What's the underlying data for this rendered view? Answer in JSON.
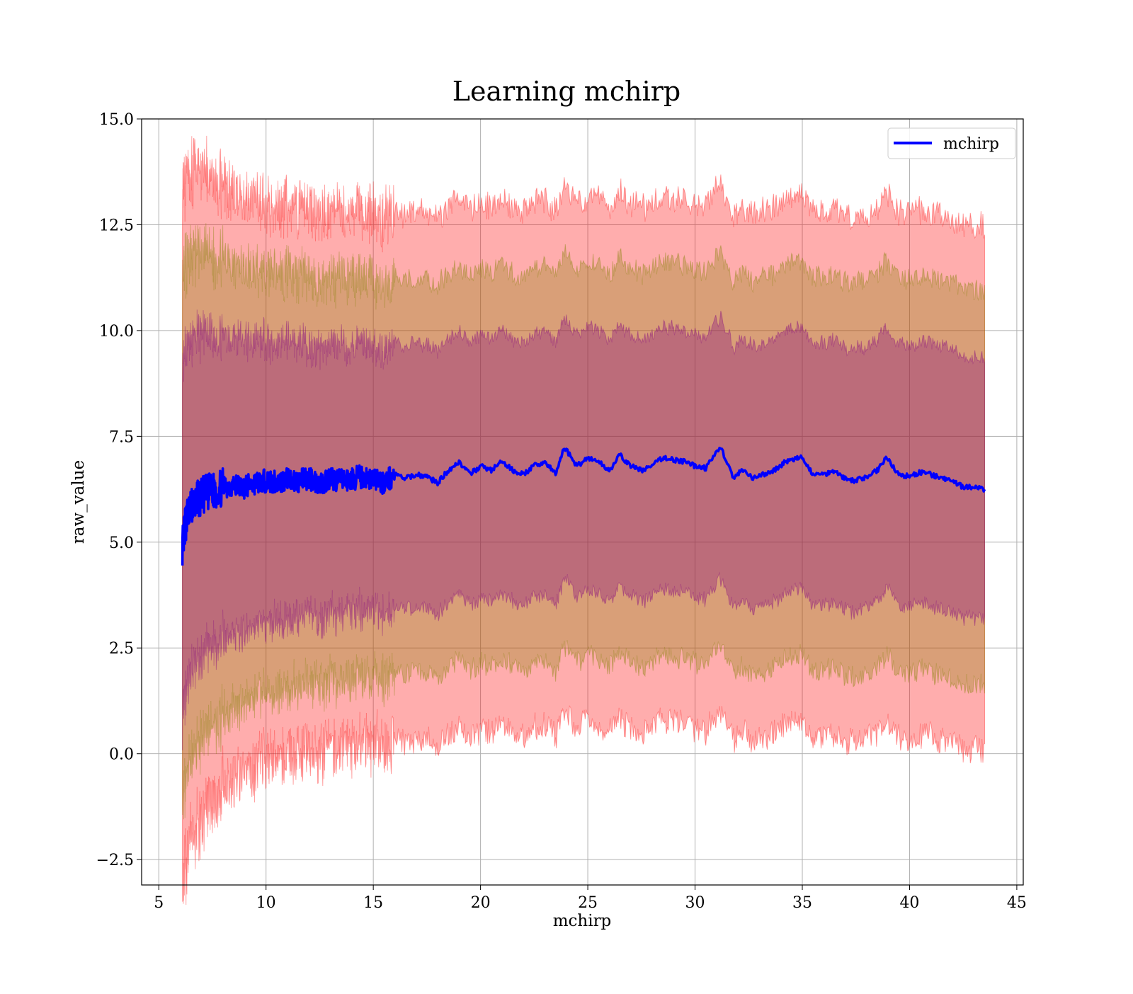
{
  "chart_data": {
    "type": "line",
    "title": "Learning mchirp",
    "xlabel": "mchirp",
    "ylabel": "raw_value",
    "xlim": [
      4.2,
      45.3
    ],
    "ylim": [
      -3.1,
      15.0
    ],
    "xticks": [
      5,
      10,
      15,
      20,
      25,
      30,
      35,
      40,
      45
    ],
    "xtick_labels": [
      "5",
      "10",
      "15",
      "20",
      "25",
      "30",
      "35",
      "40",
      "45"
    ],
    "yticks": [
      -2.5,
      0.0,
      2.5,
      5.0,
      7.5,
      10.0,
      12.5,
      15.0
    ],
    "ytick_labels": [
      "−2.5",
      "0.0",
      "2.5",
      "5.0",
      "7.5",
      "10.0",
      "12.5",
      "15.0"
    ],
    "grid": true,
    "legend": {
      "position": "top-right",
      "entries": [
        "mchirp"
      ]
    },
    "series": [
      {
        "name": "mchirp",
        "color": "#0000ff",
        "x": [
          6.1,
          6.3,
          6.6,
          7.0,
          7.5,
          8.0,
          8.5,
          9.0,
          9.5,
          10.0,
          10.5,
          11.0,
          11.5,
          12.0,
          12.5,
          13.0,
          13.5,
          14.0,
          14.5,
          15.0,
          15.5,
          16.0,
          16.5,
          17.0,
          17.5,
          18.0,
          18.5,
          19.0,
          19.5,
          20.0,
          20.5,
          21.0,
          21.5,
          22.0,
          22.5,
          23.0,
          23.5,
          23.9,
          24.5,
          25.0,
          25.5,
          26.0,
          26.5,
          27.0,
          27.5,
          28.0,
          28.5,
          29.0,
          29.5,
          30.0,
          30.5,
          31.2,
          31.8,
          32.2,
          32.7,
          33.2,
          33.7,
          34.2,
          34.6,
          35.0,
          35.5,
          36.0,
          36.5,
          37.0,
          37.5,
          38.0,
          38.5,
          38.9,
          39.5,
          40.0,
          40.5,
          41.0,
          41.5,
          42.0,
          42.5,
          43.0,
          43.5
        ],
        "values": [
          4.9,
          5.6,
          5.9,
          6.1,
          6.2,
          6.3,
          6.35,
          6.3,
          6.4,
          6.45,
          6.4,
          6.5,
          6.45,
          6.5,
          6.4,
          6.5,
          6.45,
          6.5,
          6.55,
          6.5,
          6.4,
          6.6,
          6.5,
          6.6,
          6.55,
          6.4,
          6.7,
          6.9,
          6.6,
          6.8,
          6.7,
          6.9,
          6.7,
          6.6,
          6.8,
          6.9,
          6.6,
          7.25,
          6.8,
          7.0,
          6.9,
          6.7,
          7.05,
          6.8,
          6.7,
          6.8,
          7.0,
          6.95,
          6.9,
          6.8,
          6.75,
          7.25,
          6.5,
          6.7,
          6.5,
          6.6,
          6.7,
          6.9,
          6.95,
          7.0,
          6.6,
          6.6,
          6.7,
          6.5,
          6.45,
          6.55,
          6.7,
          7.0,
          6.6,
          6.55,
          6.65,
          6.6,
          6.5,
          6.45,
          6.3,
          6.3,
          6.25
        ]
      }
    ],
    "bands": [
      {
        "color": "#ff0000",
        "opacity": 0.32,
        "label_shown": false,
        "description_value": "mean ± 2σ"
      },
      {
        "color": "#808000",
        "opacity": 0.3,
        "label_shown": false,
        "description_value": "mean ± 1.5σ"
      },
      {
        "color": "#800080",
        "opacity": 0.32,
        "label_shown": false,
        "description_value": "mean ± 1σ"
      }
    ]
  }
}
